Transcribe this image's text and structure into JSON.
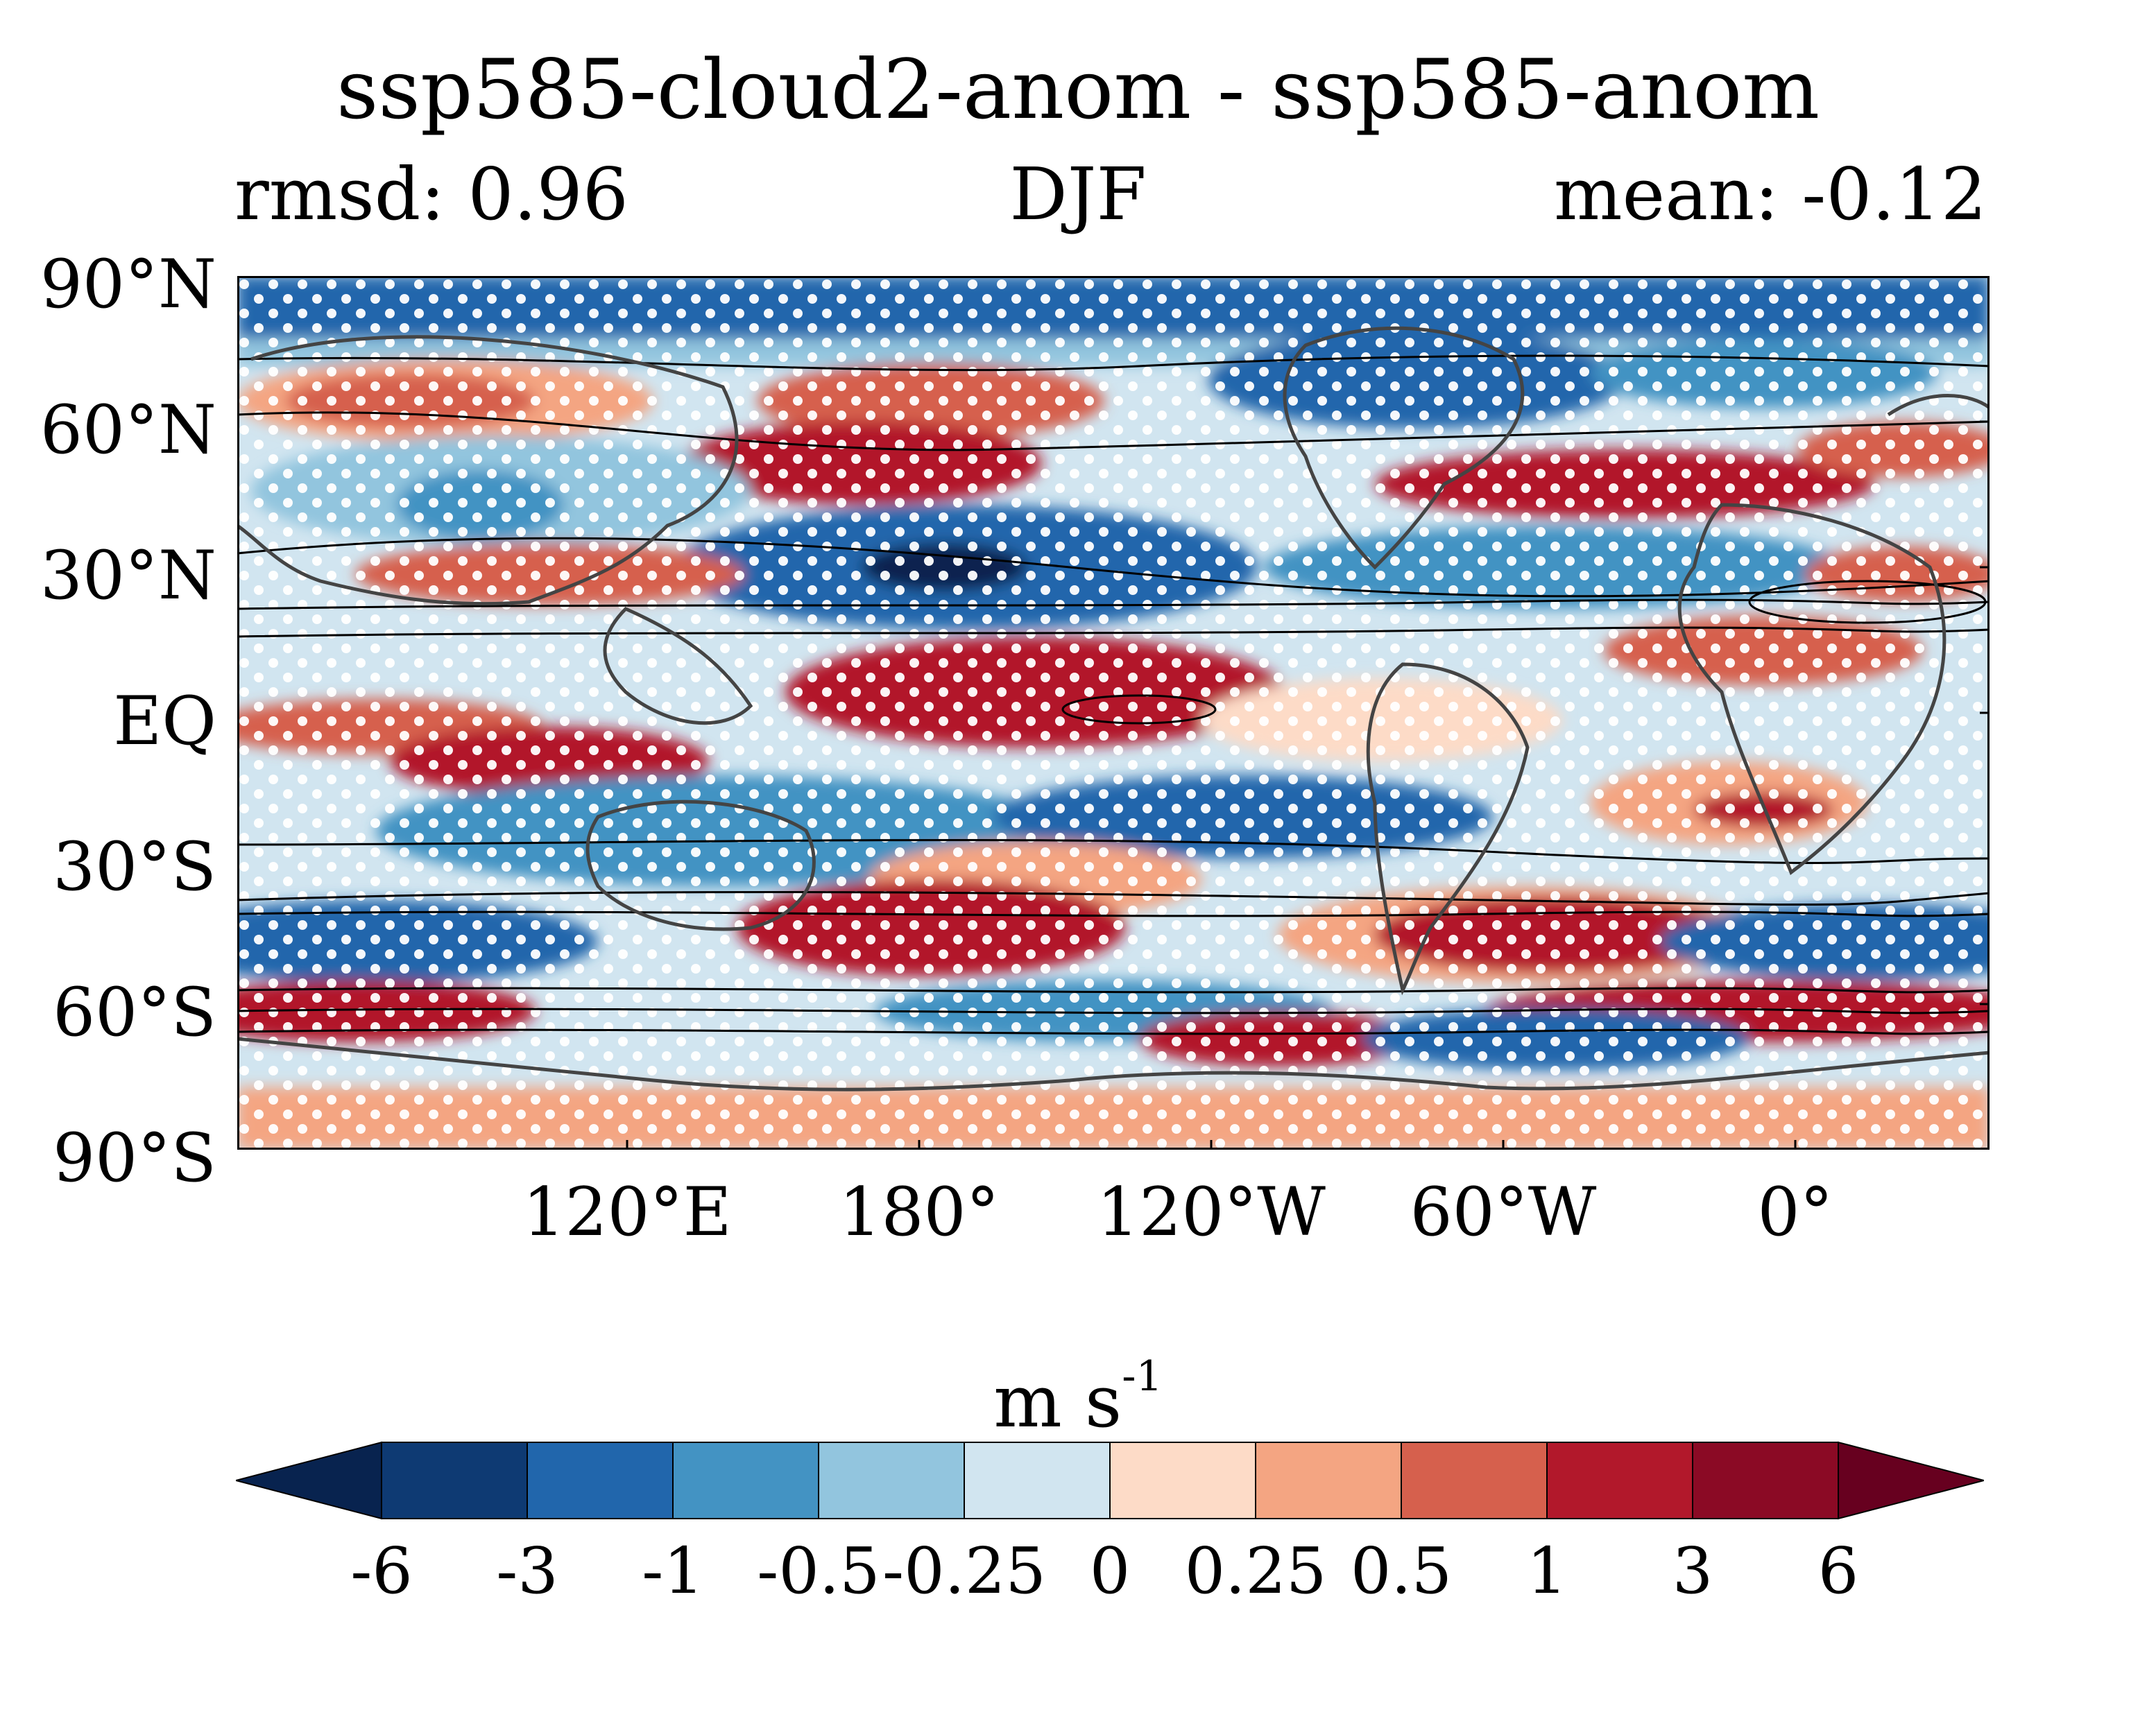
{
  "title": "ssp585-cloud2-anom - ssp585-anom",
  "subtitle_left": "rmsd: 0.96",
  "subtitle_center": "DJF",
  "subtitle_right": "mean: -0.12",
  "lat_labels": [
    "90°N",
    "60°N",
    "30°N",
    "EQ",
    "30°S",
    "60°S",
    "90°S"
  ],
  "lon_labels": [
    "120°E",
    "180°",
    "120°W",
    "60°W",
    "0°"
  ],
  "colorbar": {
    "unit": "m s",
    "unit_exponent": "-1",
    "ticks": [
      "-6",
      "-3",
      "-1",
      "-0.5",
      "-0.25",
      "0",
      "0.25",
      "0.5",
      "1",
      "3",
      "6"
    ],
    "colors": [
      "#08234f",
      "#0e3a73",
      "#2166ac",
      "#4393c3",
      "#92c5de",
      "#d1e5f0",
      "#fddbc7",
      "#f4a582",
      "#d6604d",
      "#b2182b",
      "#8b0a25",
      "#67001f"
    ]
  },
  "colors": {
    "strong_negative": "#2166ac",
    "strong_positive": "#b2182b",
    "coast": "#444444",
    "stipple": "#ffffff"
  }
}
